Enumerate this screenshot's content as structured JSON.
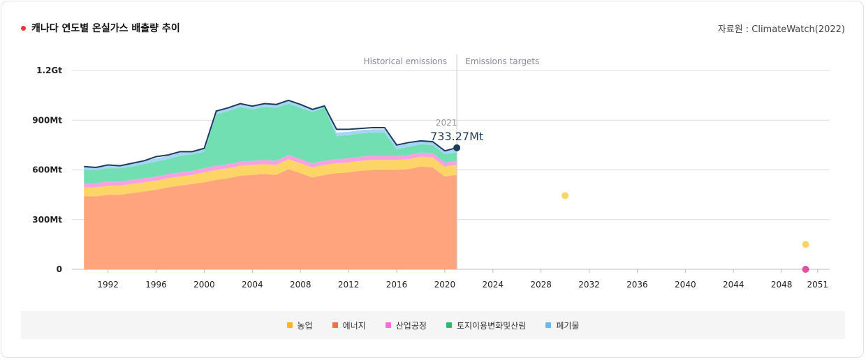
{
  "header": {
    "title": "캐나다 연도별 온실가스 배출량 추이",
    "source": "자료원 : ClimateWatch(2022)"
  },
  "colors": {
    "agriculture": "#fdd466",
    "energy": "#ffa47c",
    "industry": "#f7a1e3",
    "lulucf": "#72dfb2",
    "waste": "#a6d4f5",
    "total_line": "#1c3d5a",
    "target_2030": "#fdd466",
    "target_2050_a": "#fdd466",
    "target_2050_b": "#e0509f"
  },
  "chart_data": {
    "type": "area",
    "title": "캐나다 연도별 온실가스 배출량 추이",
    "xlabel": "",
    "ylabel": "",
    "ylim": [
      0,
      1200
    ],
    "xlim": [
      1989,
      2052
    ],
    "y_ticks": [
      {
        "value": 0,
        "label": "0"
      },
      {
        "value": 300,
        "label": "300Mt"
      },
      {
        "value": 600,
        "label": "600Mt"
      },
      {
        "value": 900,
        "label": "900Mt"
      },
      {
        "value": 1200,
        "label": "1.2Gt"
      }
    ],
    "x_ticks": [
      1992,
      1996,
      2000,
      2004,
      2008,
      2012,
      2016,
      2020,
      2024,
      2028,
      2032,
      2036,
      2040,
      2044,
      2048,
      2051
    ],
    "x": [
      1990,
      1991,
      1992,
      1993,
      1994,
      1995,
      1996,
      1997,
      1998,
      1999,
      2000,
      2001,
      2002,
      2003,
      2004,
      2005,
      2006,
      2007,
      2008,
      2009,
      2010,
      2011,
      2012,
      2013,
      2014,
      2015,
      2016,
      2017,
      2018,
      2019,
      2020,
      2021
    ],
    "series": [
      {
        "name": "에너지",
        "key": "energy",
        "values": [
          440,
          440,
          450,
          450,
          460,
          470,
          480,
          495,
          505,
          515,
          525,
          540,
          550,
          565,
          570,
          575,
          570,
          605,
          580,
          555,
          570,
          580,
          585,
          595,
          600,
          600,
          600,
          605,
          620,
          615,
          560,
          570
        ]
      },
      {
        "name": "농업",
        "key": "agriculture",
        "values": [
          55,
          55,
          55,
          55,
          55,
          55,
          55,
          55,
          55,
          55,
          60,
          60,
          60,
          60,
          60,
          60,
          60,
          60,
          60,
          60,
          60,
          60,
          60,
          60,
          60,
          60,
          60,
          60,
          60,
          60,
          60,
          60
        ]
      },
      {
        "name": "산업공정",
        "key": "industry",
        "values": [
          25,
          25,
          25,
          25,
          25,
          25,
          25,
          25,
          25,
          25,
          25,
          25,
          25,
          25,
          25,
          25,
          25,
          25,
          25,
          25,
          25,
          25,
          25,
          25,
          25,
          25,
          25,
          25,
          25,
          25,
          25,
          25
        ]
      },
      {
        "name": "토지이용변화및산림",
        "key": "lulucf",
        "values": [
          80,
          80,
          80,
          80,
          80,
          85,
          90,
          90,
          100,
          100,
          100,
          310,
          320,
          330,
          310,
          320,
          320,
          310,
          310,
          310,
          320,
          140,
          140,
          140,
          140,
          140,
          40,
          50,
          50,
          50,
          50,
          50
        ]
      },
      {
        "name": "폐기물",
        "key": "waste",
        "values": [
          20,
          20,
          20,
          20,
          20,
          20,
          20,
          20,
          20,
          20,
          20,
          20,
          20,
          20,
          20,
          20,
          20,
          20,
          20,
          20,
          20,
          20,
          20,
          20,
          20,
          20,
          20,
          20,
          20,
          20,
          20,
          20
        ]
      }
    ],
    "total_line_values": [
      620,
      615,
      630,
      625,
      640,
      655,
      680,
      690,
      710,
      710,
      730,
      955,
      975,
      1000,
      985,
      1000,
      995,
      1020,
      995,
      965,
      985,
      845,
      845,
      850,
      855,
      855,
      750,
      765,
      775,
      770,
      715,
      733.27
    ],
    "highlight": {
      "year": "2021",
      "value_label": "733.27Mt",
      "value": 733.27
    },
    "annotations": {
      "historical": "Historical emissions",
      "targets": "Emissions targets",
      "divider_year": 2021
    },
    "targets": [
      {
        "year": 2030,
        "value": 445,
        "color_key": "target_2030"
      },
      {
        "year": 2050,
        "value": 150,
        "color_key": "target_2050_a"
      },
      {
        "year": 2050,
        "value": 0,
        "color_key": "target_2050_b"
      }
    ]
  },
  "legend": [
    {
      "label": "농업",
      "color": "#f7b52a"
    },
    {
      "label": "에너지",
      "color": "#f57043"
    },
    {
      "label": "산업공정",
      "color": "#f26fd6"
    },
    {
      "label": "토지이용변화및산림",
      "color": "#2bb86f"
    },
    {
      "label": "폐기물",
      "color": "#6ab8f2"
    }
  ]
}
